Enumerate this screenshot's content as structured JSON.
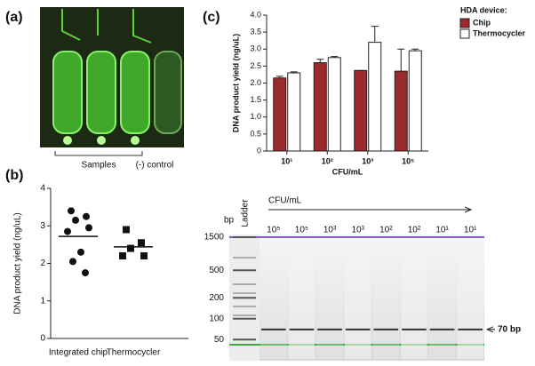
{
  "panel_labels": [
    "(a)",
    "(b)",
    "(c)"
  ],
  "photo": {
    "samples_label": "Samples",
    "control_label": "(-) control"
  },
  "chart_data": [
    {
      "type": "bar",
      "xlabel": "CFU/mL",
      "ylabel": "DNA product yield (ng/uL)",
      "categories": [
        "10¹",
        "10²",
        "10³",
        "10⁵"
      ],
      "ylim": [
        0,
        4
      ],
      "yticks": [
        0,
        0.5,
        {
          "value": 1,
          "label": "1.0"
        },
        1.5,
        {
          "value": 2,
          "label": "2.0"
        },
        2.5,
        {
          "value": 3,
          "label": "3.0"
        },
        3.5,
        {
          "value": 4,
          "label": "4.0"
        }
      ],
      "legend_title": "HDA device:",
      "series": [
        {
          "name": "Chip",
          "color": "#9b2a2c",
          "values": [
            2.15,
            2.6,
            2.37,
            2.35
          ],
          "errors": [
            0.05,
            0.1,
            0,
            0.65
          ]
        },
        {
          "name": "Thermocycler",
          "color": "#ffffff",
          "values": [
            2.3,
            2.75,
            3.2,
            2.95
          ],
          "errors": [
            0.03,
            0.03,
            0.47,
            0.05
          ]
        }
      ]
    },
    {
      "type": "strip",
      "ylabel": "DNA product yield (ng/uL)",
      "categories": [
        "Integrated chip",
        "Thermocycler"
      ],
      "ylim": [
        0,
        4
      ],
      "yticks": [
        0,
        1,
        2,
        3,
        4
      ],
      "color": "#111111",
      "groups": [
        {
          "marker": "circle",
          "values": [
            3.4,
            3.25,
            3.15,
            2.95,
            2.85,
            2.3,
            2.05,
            1.75
          ],
          "mean": 2.72
        },
        {
          "marker": "square",
          "values": [
            2.9,
            2.55,
            2.4,
            2.2,
            2.2
          ],
          "mean": 2.44
        }
      ]
    }
  ],
  "gel": {
    "bp_label": "bp",
    "ladder_label": "Ladder",
    "x_label": "CFU/mL",
    "lanes": [
      "10⁵",
      "10⁵",
      "10³",
      "10³",
      "10²",
      "10²",
      "10¹",
      "10¹"
    ],
    "bp_ticks": [
      1500,
      500,
      200,
      100,
      50
    ],
    "band_bp": 70,
    "band_label": "70 bp"
  }
}
